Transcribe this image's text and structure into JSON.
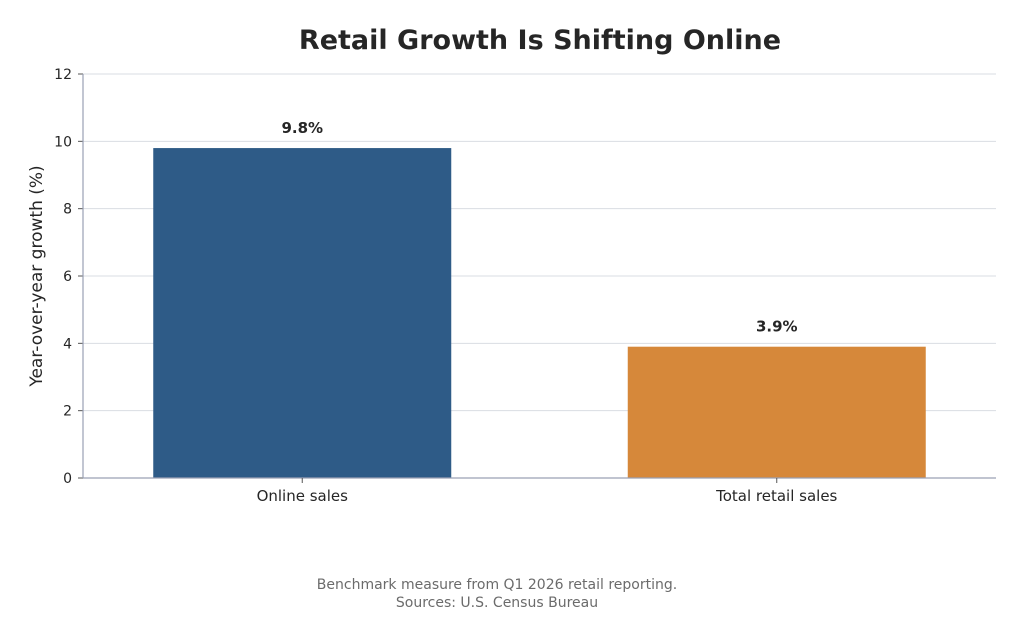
{
  "chart_data": {
    "type": "bar",
    "title": "Retail Growth Is Shifting Online",
    "ylabel": "Year-over-year growth (%)",
    "xlabel": "",
    "categories": [
      "Online sales",
      "Total retail sales"
    ],
    "values": [
      9.8,
      3.9
    ],
    "data_labels": [
      "9.8%",
      "3.9%"
    ],
    "colors": [
      "#2e5b87",
      "#d6883a"
    ],
    "ylim": [
      0,
      12
    ],
    "yticks": [
      0,
      2,
      4,
      6,
      8,
      10,
      12
    ],
    "grid": true,
    "footnote": [
      "Benchmark measure from Q1 2026 retail reporting.",
      "Sources: U.S. Census Bureau"
    ]
  }
}
